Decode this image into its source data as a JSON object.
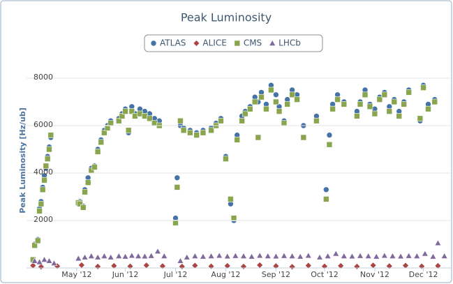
{
  "chart_data": {
    "type": "scatter",
    "title": "Peak Luminosity",
    "y_label": "Peak Luminosity [Hz/ub]",
    "xlim": [
      91,
      353
    ],
    "ylim": [
      0,
      8500
    ],
    "xticks": [
      {
        "value": 122,
        "label": "May '12"
      },
      {
        "value": 152,
        "label": "Jun '12"
      },
      {
        "value": 183,
        "label": "Jul '12"
      },
      {
        "value": 214,
        "label": "Aug '12"
      },
      {
        "value": 245,
        "label": "Sep '12"
      },
      {
        "value": 275,
        "label": "Oct '12"
      },
      {
        "value": 306,
        "label": "Nov '12"
      },
      {
        "value": 336,
        "label": "Dec '12"
      }
    ],
    "yticks": [
      2000,
      4000,
      6000,
      8000
    ],
    "grid": true,
    "legend": "top",
    "series": [
      {
        "name": "ATLAS",
        "color": "#4572a7",
        "marker": "circle",
        "x": [
          95,
          96,
          98,
          99,
          100,
          101,
          102,
          103,
          104,
          105,
          106,
          123,
          124,
          126,
          127,
          129,
          131,
          133,
          135,
          137,
          139,
          141,
          143,
          148,
          150,
          152,
          154,
          156,
          158,
          161,
          164,
          167,
          170,
          173,
          183,
          184,
          186,
          188,
          192,
          196,
          200,
          205,
          208,
          211,
          214,
          217,
          219,
          221,
          224,
          226,
          229,
          232,
          234,
          236,
          239,
          242,
          245,
          247,
          250,
          252,
          255,
          258,
          262,
          270,
          276,
          278,
          280,
          283,
          287,
          295,
          297,
          300,
          303,
          306,
          309,
          312,
          315,
          318,
          321,
          324,
          327,
          334,
          336,
          339,
          343
        ],
        "values": [
          300,
          1000,
          1200,
          2500,
          2800,
          3400,
          3900,
          4200,
          4700,
          5100,
          5500,
          2700,
          2800,
          2600,
          3300,
          3800,
          4200,
          4300,
          5000,
          5400,
          5800,
          6000,
          6200,
          6300,
          6500,
          6700,
          5700,
          6800,
          6500,
          6700,
          6600,
          6500,
          6300,
          6200,
          2100,
          3800,
          6000,
          5900,
          5800,
          5700,
          5800,
          5900,
          6100,
          6300,
          4700,
          2700,
          2000,
          5600,
          6400,
          6600,
          6800,
          7200,
          7000,
          7400,
          6900,
          7700,
          7300,
          6800,
          6200,
          7100,
          7500,
          7300,
          6000,
          6400,
          3300,
          5600,
          6900,
          7300,
          7000,
          6600,
          7000,
          7500,
          6900,
          6700,
          7200,
          7400,
          6800,
          7100,
          6600,
          7000,
          7500,
          6200,
          7700,
          6900,
          7100
        ]
      },
      {
        "name": "ALICE",
        "color": "#aa4643",
        "marker": "diamond",
        "x": [
          95,
          100,
          110,
          125,
          135,
          145,
          155,
          165,
          175,
          187,
          195,
          205,
          215,
          225,
          235,
          245,
          255,
          265,
          275,
          285,
          295,
          305,
          315,
          325,
          335,
          345
        ],
        "values": [
          100,
          50,
          80,
          120,
          60,
          90,
          70,
          110,
          80,
          60,
          100,
          70,
          90,
          60,
          120,
          80,
          50,
          100,
          70,
          90,
          60,
          110,
          80,
          100,
          70,
          90
        ]
      },
      {
        "name": "CMS",
        "color": "#89a54e",
        "marker": "square",
        "x": [
          95,
          96,
          98,
          99,
          100,
          101,
          102,
          103,
          104,
          105,
          106,
          123,
          124,
          126,
          127,
          129,
          131,
          133,
          135,
          137,
          139,
          141,
          143,
          148,
          150,
          152,
          154,
          156,
          158,
          161,
          164,
          167,
          170,
          173,
          183,
          184,
          186,
          188,
          192,
          196,
          200,
          205,
          208,
          211,
          214,
          217,
          219,
          221,
          224,
          226,
          229,
          232,
          234,
          236,
          239,
          242,
          245,
          247,
          250,
          252,
          255,
          258,
          262,
          270,
          276,
          278,
          280,
          283,
          287,
          295,
          297,
          300,
          303,
          306,
          309,
          312,
          315,
          318,
          321,
          324,
          327,
          334,
          336,
          339,
          343
        ],
        "values": [
          350,
          950,
          1150,
          2400,
          2700,
          3300,
          3700,
          4300,
          4600,
          5000,
          5600,
          2750,
          2700,
          2550,
          3200,
          3600,
          4100,
          4250,
          4900,
          5300,
          5700,
          5900,
          6100,
          6200,
          6400,
          6600,
          5800,
          6600,
          6400,
          6500,
          6400,
          6300,
          6100,
          6000,
          1900,
          3400,
          6200,
          5800,
          5700,
          5600,
          5700,
          5800,
          6000,
          6200,
          4600,
          2900,
          2100,
          5400,
          6200,
          6500,
          6700,
          7000,
          5500,
          7200,
          6700,
          7500,
          7000,
          6600,
          6100,
          6900,
          7300,
          7100,
          5500,
          6200,
          2900,
          5200,
          6700,
          7100,
          6900,
          6400,
          6900,
          7300,
          6800,
          6500,
          7100,
          7300,
          6600,
          7000,
          6400,
          6900,
          7400,
          6300,
          7600,
          6700,
          7000
        ]
      },
      {
        "name": "LHCb",
        "color": "#80699b",
        "marker": "triangle",
        "x": [
          96,
          99,
          102,
          105,
          108,
          123,
          127,
          131,
          135,
          139,
          143,
          148,
          152,
          156,
          160,
          164,
          168,
          172,
          176,
          186,
          190,
          195,
          200,
          205,
          210,
          215,
          220,
          225,
          230,
          235,
          240,
          245,
          250,
          255,
          260,
          265,
          272,
          277,
          282,
          287,
          292,
          297,
          302,
          307,
          312,
          317,
          322,
          327,
          332,
          337,
          342,
          345,
          349
        ],
        "values": [
          300,
          250,
          350,
          300,
          200,
          400,
          450,
          500,
          450,
          500,
          450,
          500,
          480,
          520,
          500,
          490,
          510,
          700,
          500,
          300,
          450,
          500,
          480,
          500,
          520,
          490,
          510,
          500,
          480,
          520,
          500,
          490,
          510,
          500,
          480,
          520,
          450,
          500,
          600,
          500,
          490,
          510,
          500,
          480,
          520,
          500,
          490,
          510,
          500,
          600,
          480,
          1050,
          500
        ]
      }
    ]
  }
}
